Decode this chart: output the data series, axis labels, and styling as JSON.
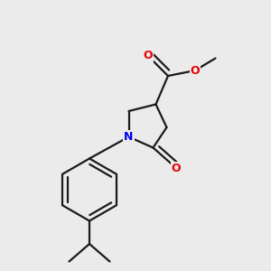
{
  "bg_color": "#ebebeb",
  "bond_color": "#1a1a1a",
  "N_color": "#0000ee",
  "O_color": "#ee0000",
  "bond_width": 1.6,
  "dbo": 0.018,
  "figsize": [
    3.0,
    3.0
  ],
  "dpi": 100,
  "xlim": [
    0.0,
    1.0
  ],
  "ylim": [
    0.0,
    1.0
  ]
}
